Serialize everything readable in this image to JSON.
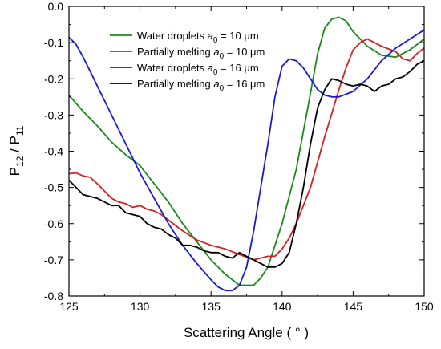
{
  "chart_data": {
    "type": "line",
    "xlabel": "Scattering Angle ( ° )",
    "ylabel_main": "P",
    "ylabel_sub1": "12",
    "ylabel_mid": " / P",
    "ylabel_sub2": "11",
    "xlim": [
      125,
      150
    ],
    "ylim": [
      -0.8,
      0.0
    ],
    "xticks": [
      125,
      130,
      135,
      140,
      145,
      150
    ],
    "xtick_labels": [
      "125",
      "130",
      "135",
      "140",
      "145",
      "150"
    ],
    "yticks": [
      0.0,
      -0.1,
      -0.2,
      -0.3,
      -0.4,
      -0.5,
      -0.6,
      -0.7,
      -0.8
    ],
    "ytick_labels": [
      "0.0",
      "-0.1",
      "-0.2",
      "-0.3",
      "-0.4",
      "-0.5",
      "-0.6",
      "-0.7",
      "-0.8"
    ],
    "legend_position": "top-center",
    "series": [
      {
        "legend_text": "Water droplets",
        "legend_param": "a",
        "legend_param_sub": "0",
        "legend_value": " = 10 μm",
        "color": "#1a8a1a",
        "x": [
          125,
          126,
          127,
          128,
          129,
          130,
          131,
          132,
          133,
          134,
          135,
          136,
          137,
          138,
          138.5,
          139,
          140,
          141,
          142,
          142.5,
          143,
          143.5,
          144,
          144.5,
          145,
          146,
          147,
          148,
          149,
          150
        ],
        "y": [
          -0.245,
          -0.29,
          -0.33,
          -0.375,
          -0.41,
          -0.44,
          -0.49,
          -0.54,
          -0.6,
          -0.65,
          -0.7,
          -0.74,
          -0.77,
          -0.77,
          -0.75,
          -0.72,
          -0.6,
          -0.45,
          -0.24,
          -0.13,
          -0.06,
          -0.035,
          -0.03,
          -0.04,
          -0.07,
          -0.11,
          -0.135,
          -0.14,
          -0.12,
          -0.09
        ]
      },
      {
        "legend_text": "Partially melting",
        "legend_param": "a",
        "legend_param_sub": "0",
        "legend_value": " = 10 μm",
        "color": "#d42020",
        "x": [
          125,
          125.5,
          126,
          126.5,
          127,
          127.5,
          128,
          128.5,
          129,
          129.5,
          130,
          130.5,
          131,
          131.5,
          132,
          132.5,
          133,
          134,
          135,
          136,
          137,
          138,
          139,
          139.5,
          140,
          140.5,
          141,
          142,
          143,
          144,
          144.5,
          145,
          145.5,
          146,
          146.5,
          147,
          148,
          148.5,
          149,
          149.5,
          150
        ],
        "y": [
          -0.462,
          -0.46,
          -0.468,
          -0.472,
          -0.49,
          -0.51,
          -0.53,
          -0.54,
          -0.545,
          -0.555,
          -0.55,
          -0.56,
          -0.565,
          -0.575,
          -0.59,
          -0.605,
          -0.62,
          -0.645,
          -0.66,
          -0.67,
          -0.685,
          -0.7,
          -0.69,
          -0.69,
          -0.67,
          -0.64,
          -0.6,
          -0.5,
          -0.36,
          -0.23,
          -0.17,
          -0.12,
          -0.1,
          -0.09,
          -0.1,
          -0.11,
          -0.125,
          -0.145,
          -0.15,
          -0.13,
          -0.115
        ]
      },
      {
        "legend_text": "Water droplets",
        "legend_param": "a",
        "legend_param_sub": "0",
        "legend_value": " = 16 μm",
        "color": "#1a1ad0",
        "x": [
          125,
          125.5,
          126,
          126.5,
          127,
          128,
          129,
          130,
          131,
          132,
          133,
          134,
          135,
          135.5,
          136,
          136.5,
          137,
          137.5,
          138,
          138.5,
          139,
          139.5,
          140,
          140.5,
          141,
          141.5,
          142,
          142.5,
          143,
          143.5,
          144,
          145,
          146,
          147,
          148,
          149,
          150
        ],
        "y": [
          -0.085,
          -0.105,
          -0.14,
          -0.18,
          -0.22,
          -0.3,
          -0.38,
          -0.46,
          -0.53,
          -0.6,
          -0.66,
          -0.71,
          -0.755,
          -0.775,
          -0.785,
          -0.785,
          -0.77,
          -0.72,
          -0.62,
          -0.5,
          -0.38,
          -0.25,
          -0.165,
          -0.145,
          -0.15,
          -0.17,
          -0.2,
          -0.23,
          -0.245,
          -0.25,
          -0.25,
          -0.235,
          -0.2,
          -0.15,
          -0.115,
          -0.09,
          -0.065
        ]
      },
      {
        "legend_text": "Partially melting",
        "legend_param": "a",
        "legend_param_sub": "0",
        "legend_value": " = 16 μm",
        "color": "#000000",
        "x": [
          125,
          125.5,
          126,
          126.5,
          127,
          127.5,
          128,
          128.5,
          129,
          129.5,
          130,
          130.5,
          131,
          131.5,
          132,
          132.5,
          133,
          133.5,
          134,
          134.5,
          135,
          135.5,
          136,
          136.5,
          137,
          137.5,
          138,
          138.5,
          139,
          139.5,
          140,
          140.5,
          141,
          141.5,
          142,
          142.5,
          143,
          143.5,
          144,
          144.5,
          145,
          145.5,
          146,
          146.5,
          147,
          147.5,
          148,
          148.5,
          149,
          149.5,
          150
        ],
        "y": [
          -0.48,
          -0.5,
          -0.52,
          -0.525,
          -0.53,
          -0.54,
          -0.55,
          -0.55,
          -0.57,
          -0.575,
          -0.58,
          -0.6,
          -0.61,
          -0.615,
          -0.63,
          -0.64,
          -0.66,
          -0.66,
          -0.665,
          -0.675,
          -0.68,
          -0.68,
          -0.69,
          -0.695,
          -0.68,
          -0.69,
          -0.7,
          -0.71,
          -0.72,
          -0.72,
          -0.71,
          -0.68,
          -0.6,
          -0.5,
          -0.38,
          -0.28,
          -0.23,
          -0.2,
          -0.205,
          -0.215,
          -0.22,
          -0.215,
          -0.22,
          -0.235,
          -0.22,
          -0.215,
          -0.2,
          -0.195,
          -0.18,
          -0.16,
          -0.15
        ]
      }
    ]
  }
}
